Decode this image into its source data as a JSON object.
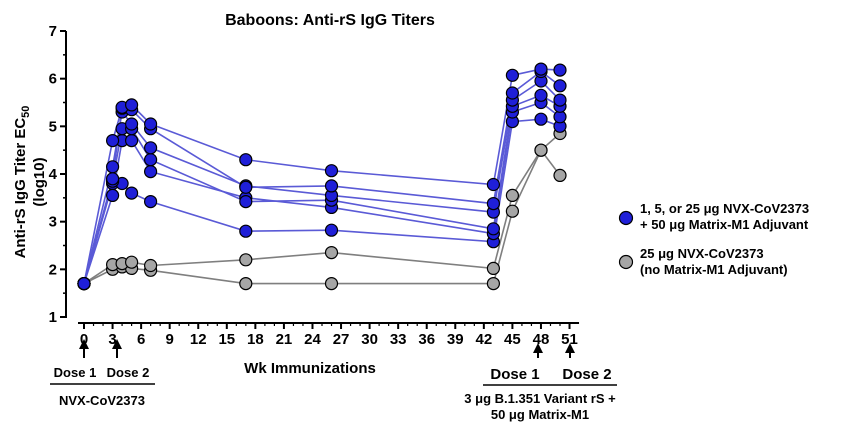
{
  "chart_data": {
    "type": "line",
    "title": "Baboons: Anti-rS IgG Titers",
    "ylabel_line1": "Anti-rS IgG Titer EC",
    "ylabel_sub": "50",
    "ylabel_line2": "(log10)",
    "xlabel": "Wk Immunizations",
    "ylim": [
      1,
      7
    ],
    "y_ticks": [
      "1",
      "2",
      "3",
      "4",
      "5",
      "6",
      "7"
    ],
    "xlim": [
      0,
      52
    ],
    "x_ticks": [
      "0",
      "3",
      "6",
      "9",
      "12",
      "15",
      "18",
      "21",
      "24",
      "27",
      "30",
      "33",
      "36",
      "39",
      "42",
      "45",
      "48",
      "51"
    ],
    "legend_position": "right",
    "series": [
      {
        "group": "adjuvant",
        "x": [
          0,
          3,
          4,
          5,
          7,
          17,
          26,
          43,
          45,
          48,
          50
        ],
        "y": [
          1.7,
          3.8,
          3.8,
          3.6,
          3.42,
          2.8,
          2.82,
          2.58,
          5.1,
          5.15,
          5.0
        ]
      },
      {
        "group": "adjuvant",
        "x": [
          0,
          3,
          4,
          5,
          7,
          17,
          26,
          43,
          45,
          48,
          50
        ],
        "y": [
          1.7,
          3.55,
          4.7,
          4.7,
          4.05,
          3.5,
          3.3,
          2.75,
          5.3,
          5.5,
          5.2
        ]
      },
      {
        "group": "adjuvant",
        "x": [
          0,
          3,
          4,
          5,
          7,
          17,
          26,
          43,
          45,
          48,
          50
        ],
        "y": [
          1.7,
          3.85,
          4.95,
          4.95,
          4.3,
          3.42,
          3.45,
          2.85,
          5.42,
          5.65,
          5.42
        ]
      },
      {
        "group": "adjuvant",
        "x": [
          0,
          3,
          4,
          5,
          7,
          17,
          26,
          43,
          45,
          48,
          50
        ],
        "y": [
          1.7,
          4.15,
          5.3,
          5.05,
          4.55,
          3.75,
          3.55,
          3.2,
          5.55,
          5.95,
          5.55
        ]
      },
      {
        "group": "adjuvant",
        "x": [
          0,
          3,
          4,
          5,
          7,
          17,
          26,
          43,
          45,
          48,
          50
        ],
        "y": [
          1.7,
          4.7,
          5.38,
          5.35,
          4.95,
          3.72,
          3.75,
          3.38,
          5.7,
          6.15,
          5.85
        ]
      },
      {
        "group": "adjuvant",
        "x": [
          0,
          3,
          4,
          5,
          7,
          17,
          26,
          43,
          45,
          48,
          50
        ],
        "y": [
          1.7,
          3.9,
          5.4,
          5.45,
          5.05,
          4.3,
          4.07,
          3.78,
          6.07,
          6.2,
          6.18
        ]
      },
      {
        "group": "no_adjuvant",
        "x": [
          0,
          3,
          4,
          5,
          7,
          17,
          26,
          43,
          45,
          48,
          50
        ],
        "y": [
          1.7,
          2.0,
          2.05,
          2.02,
          1.98,
          1.7,
          1.7,
          1.7,
          3.22,
          4.5,
          3.97
        ]
      },
      {
        "group": "no_adjuvant",
        "x": [
          0,
          3,
          4,
          5,
          7,
          17,
          26,
          43,
          45,
          48,
          50
        ],
        "y": [
          1.7,
          2.1,
          2.12,
          2.15,
          2.08,
          2.2,
          2.35,
          2.02,
          3.55,
          4.5,
          4.85
        ]
      }
    ],
    "legend": [
      {
        "line1": "1, 5, or 25 μg NVX-CoV2373",
        "line2": "+ 50 μg Matrix-M1 Adjuvant",
        "fill": "#1f1fd8"
      },
      {
        "line1": "25 μg NVX-CoV2373",
        "line2": "(no Matrix-M1 Adjuvant)",
        "fill": "#a6a6a6"
      }
    ],
    "annotations": {
      "dose1_label": "Dose 1",
      "dose2_label": "Dose 2",
      "primary_vaccine": "NVX-CoV2373",
      "boost_dose1_label": "Dose 1",
      "boost_dose2_label": "Dose 2",
      "boost_line1": "3 μg B.1.351 Variant rS +",
      "boost_line2": "50 μg Matrix-M1"
    },
    "colors": {
      "adjuvant_fill": "#1f1fd8",
      "adjuvant_line": "#5a5ad6",
      "no_adjuvant_fill": "#a6a6a6",
      "no_adjuvant_line": "#7f7f7f"
    }
  }
}
